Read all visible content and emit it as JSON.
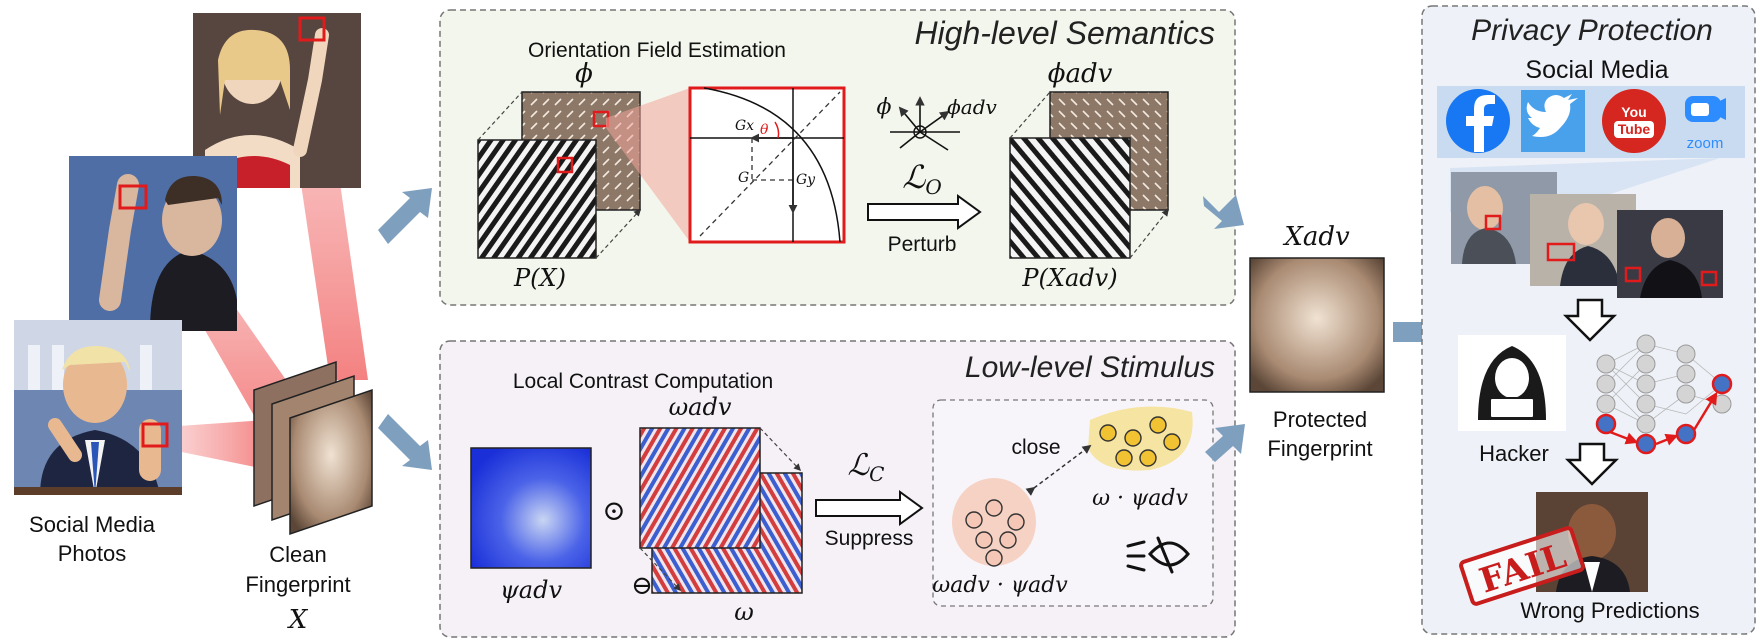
{
  "left": {
    "photos_label_1": "Social Media",
    "photos_label_2": "Photos",
    "clean_label_1": "Clean",
    "clean_label_2": "Fingerprint",
    "clean_symbol": "X"
  },
  "high": {
    "title": "High-level Semantics",
    "subtitle": "Orientation Field Estimation",
    "phi": "ϕ",
    "px": "P(X)",
    "gx": "Gx",
    "gy": "Gy",
    "g": "G",
    "theta": "θ",
    "loss": "ℒO",
    "loss_main": "ℒ",
    "loss_sub": "O",
    "phi_adv_small": "ϕadv",
    "perturb": "Perturb",
    "phi_adv": "ϕadv",
    "px_adv": "P(Xadv)"
  },
  "low": {
    "title": "Low-level Stimulus",
    "subtitle": "Local Contrast Computation",
    "psi_adv": "ψadv",
    "omega_adv": "ωadv",
    "omega": "ω",
    "odot": "⊙",
    "ominus": "⊖",
    "loss_main": "ℒ",
    "loss_sub": "C",
    "suppress": "Suppress",
    "close": "close",
    "cluster_a": "ω · ψadv",
    "cluster_b": "ωadv · ψadv"
  },
  "middle": {
    "xadv": "Xadv",
    "protected_1": "Protected",
    "protected_2": "Fingerprint"
  },
  "right": {
    "title": "Privacy Protection",
    "social": "Social Media",
    "apps": [
      "facebook",
      "twitter",
      "YouTube",
      "zoom"
    ],
    "youtube_you": "You",
    "youtube_tube": "Tube",
    "zoom": "zoom",
    "hacker": "Hacker",
    "fail": "FAIL",
    "wrong": "Wrong Predictions"
  },
  "colors": {
    "high_bg": "#f3f6ec",
    "low_bg": "#f5f1f7",
    "right_bg": "#eef2f8",
    "arrow_blue": "#7f9fbf",
    "highlight_red": "#e11b1b"
  }
}
